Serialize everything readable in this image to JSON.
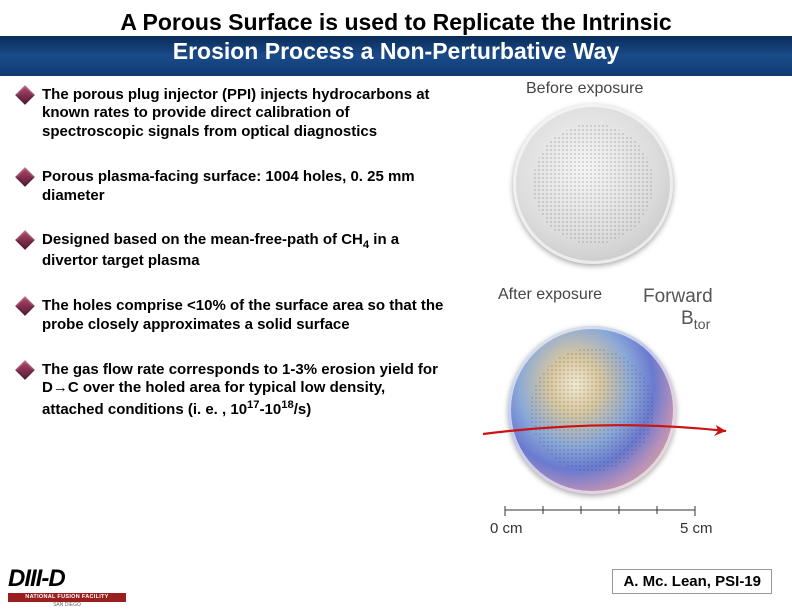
{
  "title": {
    "line1": "A Porous Surface is used to Replicate the Intrinsic",
    "line2": "Erosion Process a Non-Perturbative Way"
  },
  "bullets": [
    {
      "html": "The porous plug injector (PPI) injects hydrocarbons at known rates to provide direct calibration of spectroscopic signals from optical diagnostics"
    },
    {
      "html": "Porous plasma-facing surface: 1004 holes, 0. 25 mm diameter"
    },
    {
      "html": "Designed based on the mean-free-path of CH<sub>4</sub> in a divertor target plasma"
    },
    {
      "html": "The holes comprise <10% of the surface area so that the probe closely approximates a solid surface"
    },
    {
      "html": "The gas flow rate corresponds to 1-3% erosion yield for D→C over the holed area for typical low density, attached conditions (i. e. , 10<sup>17</sup>-10<sup>18</sup>/s)"
    }
  ],
  "figure": {
    "before_label": "Before exposure",
    "after_label": "After exposure",
    "forward_label": "Forward",
    "btor_label": "B",
    "btor_sub": "tor",
    "ruler_left": "0 cm",
    "ruler_right": "5 cm",
    "arrow_color": "#cc1111",
    "disc_before_bg": "#dcdcdc",
    "disc_after_bg": "#8aa8d8"
  },
  "logo": {
    "main": "DIII-D",
    "bar": "NATIONAL FUSION FACILITY",
    "sub": "SAN DIEGO"
  },
  "credit": "A. Mc. Lean, PSI-19"
}
